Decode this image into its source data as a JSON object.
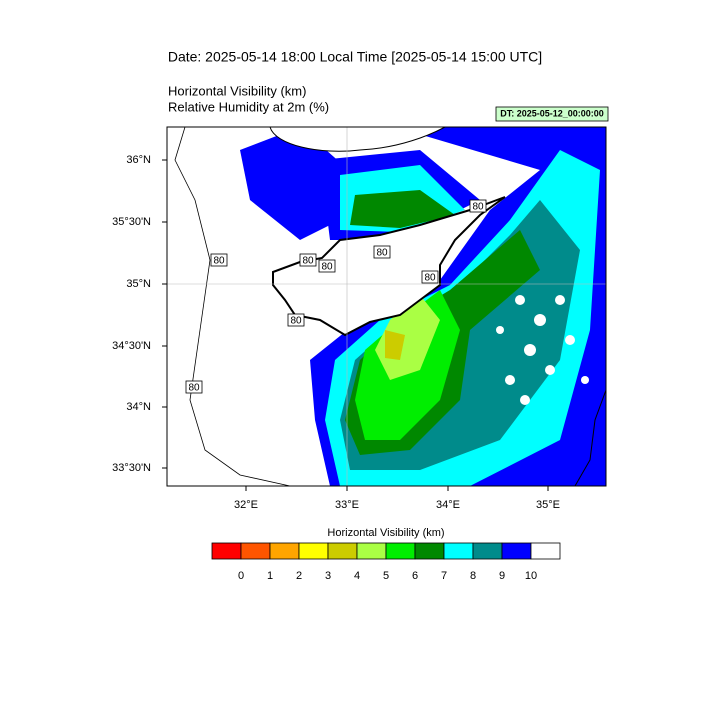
{
  "header": {
    "date": "Date: 2025-05-14  18:00 Local Time [2025-05-14  15:00 UTC]",
    "title_lines": [
      "Horizontal Visibility   (km)",
      "Relative Humidity at 2m   (%)"
    ],
    "dt": "DT: 2025-05-12_00:00:00"
  },
  "map": {
    "lat_labels": [
      "36°N",
      "35°30'N",
      "35°N",
      "34°30'N",
      "34°N",
      "33°30'N"
    ],
    "lon_labels": [
      "32°E",
      "33°E",
      "34°E",
      "35°E"
    ],
    "contour_labels": [
      "80",
      "80",
      "80",
      "80",
      "80",
      "80",
      "80",
      "80"
    ]
  },
  "colorbar": {
    "title": "Horizontal Visibility  (km)",
    "ticks": [
      0,
      1,
      2,
      3,
      4,
      5,
      6,
      7,
      8,
      9,
      10
    ],
    "colors": [
      "#ff0000",
      "#ff5500",
      "#ffa500",
      "#ffff00",
      "#cccc00",
      "#aaff44",
      "#00ee00",
      "#008800",
      "#00ffff",
      "#008b8b",
      "#0000ff",
      "#ffffff"
    ]
  }
}
